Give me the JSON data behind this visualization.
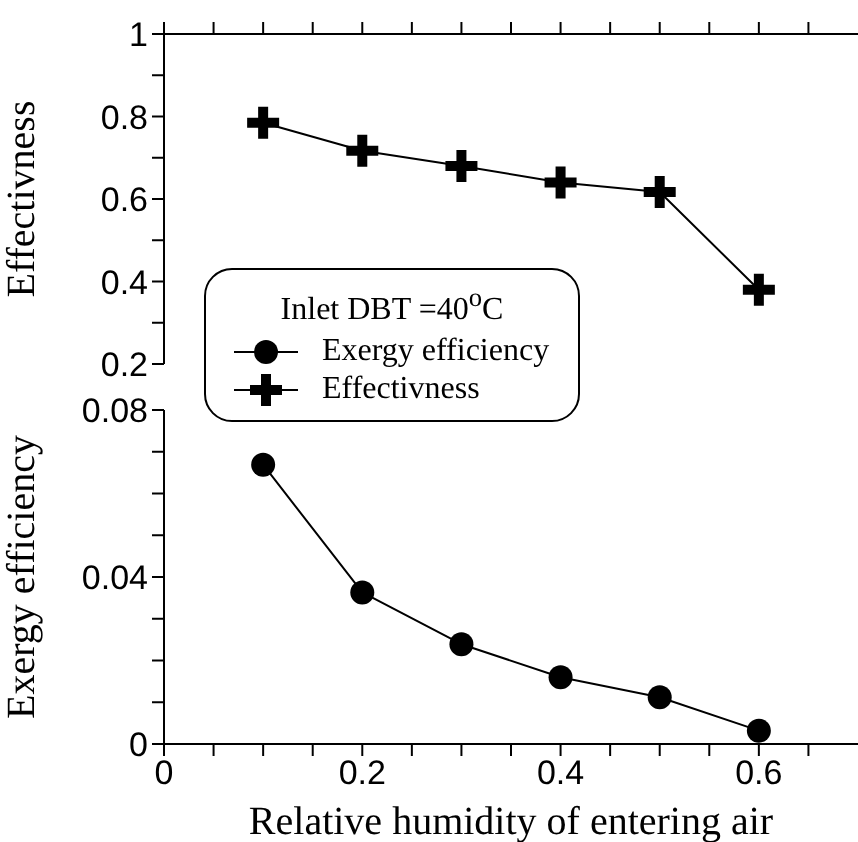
{
  "chart_data": [
    {
      "type": "line",
      "ylabel": "Effectivness",
      "legend": "bottom left",
      "legend_title": "Inlet DBT =40$^{o}$C",
      "marker": "cross",
      "tick_labels": "y",
      "x": [
        0.1,
        0.2,
        0.3,
        0.4,
        0.5,
        0.6
      ],
      "xlim": [
        0,
        0.7
      ],
      "xticks": [
        {
          "value": 0,
          "label": null
        },
        {
          "value": 0.05,
          "label": null
        },
        {
          "value": 0.1,
          "label": null
        },
        {
          "value": 0.15,
          "label": null
        },
        {
          "value": 0.2,
          "label": null
        },
        {
          "value": 0.25,
          "label": null
        },
        {
          "value": 0.3,
          "label": null
        },
        {
          "value": 0.35,
          "label": null
        },
        {
          "value": 0.4,
          "label": null
        },
        {
          "value": 0.45,
          "label": null
        },
        {
          "value": 0.5,
          "label": null
        },
        {
          "value": 0.55,
          "label": null
        },
        {
          "value": 0.6,
          "label": null
        },
        {
          "value": 0.65,
          "label": null
        }
      ],
      "ylim": [
        0.2,
        1
      ],
      "yticks": [
        0.2,
        {
          "value": 0.3,
          "label": null
        },
        0.4,
        {
          "value": 0.5,
          "label": null
        },
        0.6,
        {
          "value": 0.7,
          "label": null
        },
        0.8,
        {
          "value": 0.9,
          "label": null
        },
        1
      ],
      "series": [
        {
          "name": "Effectivness",
          "color": "#000000",
          "values": [
            0.785,
            0.717,
            0.68,
            0.64,
            0.617,
            0.38
          ]
        }
      ]
    },
    {
      "type": "line",
      "ylabel": "Exergy efficiency",
      "xlabel": "Relative humidity of entering air",
      "legend": "top left",
      "marker": "circle",
      "x": [
        0.1,
        0.2,
        0.3,
        0.4,
        0.5,
        0.6
      ],
      "xlim": [
        0,
        0.7
      ],
      "xticks": [
        0,
        {
          "value": 0.05,
          "label": null
        },
        {
          "value": 0.1,
          "label": null
        },
        {
          "value": 0.15,
          "label": null
        },
        0.2,
        {
          "value": 0.25,
          "label": null
        },
        {
          "value": 0.3,
          "label": null
        },
        {
          "value": 0.35,
          "label": null
        },
        0.4,
        {
          "value": 0.45,
          "label": null
        },
        {
          "value": 0.5,
          "label": null
        },
        {
          "value": 0.55,
          "label": null
        },
        0.6,
        {
          "value": 0.65,
          "label": null
        }
      ],
      "ylim": [
        0,
        0.08
      ],
      "yticks": [
        0,
        {
          "value": 0.01,
          "label": null
        },
        {
          "value": 0.02,
          "label": null
        },
        {
          "value": 0.03,
          "label": null
        },
        0.04,
        {
          "value": 0.05,
          "label": null
        },
        {
          "value": 0.06,
          "label": null
        },
        {
          "value": 0.07,
          "label": null
        },
        0.08
      ],
      "series": [
        {
          "name": "Exergy efficiency",
          "color": "#000000",
          "values": [
            0.0669,
            0.0363,
            0.0239,
            0.016,
            0.0112,
            0.0032
          ]
        }
      ]
    }
  ]
}
